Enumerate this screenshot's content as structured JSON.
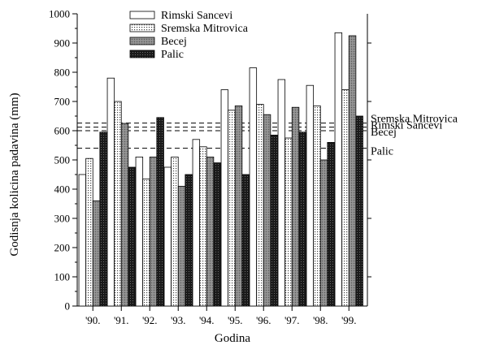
{
  "chart_data": {
    "type": "bar",
    "title": "",
    "xlabel": "Godina",
    "ylabel": "Godisnja kolicina padavina (mm)",
    "ylim": [
      0,
      1000
    ],
    "yticks": [
      0,
      100,
      200,
      300,
      400,
      500,
      600,
      700,
      800,
      900,
      1000
    ],
    "categories": [
      "'90.",
      "'91.",
      "'92.",
      "'93.",
      "'94.",
      "'95.",
      "'96.",
      "'97.",
      "'98.",
      "'99."
    ],
    "series": [
      {
        "name": "Rimski Sancevi",
        "pattern": "white",
        "values": [
          450,
          780,
          510,
          475,
          570,
          740,
          815,
          775,
          755,
          935
        ]
      },
      {
        "name": "Sremska Mitrovica",
        "pattern": "dotted",
        "values": [
          505,
          700,
          435,
          510,
          545,
          670,
          690,
          575,
          685,
          740
        ]
      },
      {
        "name": "Becej",
        "pattern": "grey",
        "values": [
          360,
          625,
          510,
          410,
          510,
          685,
          655,
          680,
          500,
          925
        ]
      },
      {
        "name": "Palic",
        "pattern": "dark",
        "values": [
          595,
          475,
          645,
          450,
          490,
          450,
          585,
          595,
          560,
          650
        ]
      }
    ],
    "reference_lines": [
      {
        "label": "Sremska Mitrovica",
        "value": 626
      },
      {
        "label": "Rimski Sancevi",
        "value": 612
      },
      {
        "label": "Becej",
        "value": 600
      },
      {
        "label": "Palic",
        "value": 540
      }
    ],
    "legend_position": "top-left inside plot",
    "grid": false
  }
}
